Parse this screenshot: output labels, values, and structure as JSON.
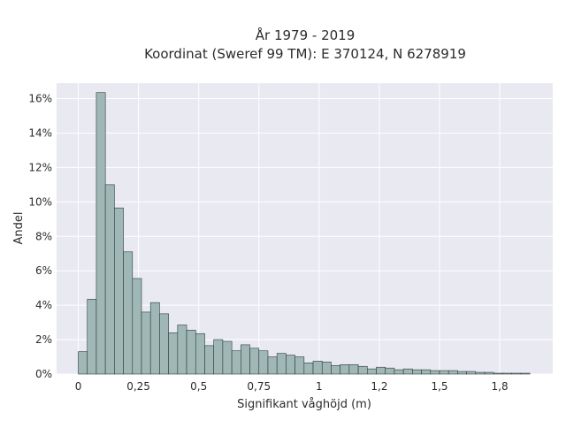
{
  "chart_data": {
    "type": "bar",
    "title_lines": [
      "År 1979 - 2019",
      "Koordinat (Sweref 99 TM): E 370124, N 6278919"
    ],
    "xlabel": "Signifikant våghöjd (m)",
    "ylabel": "Andel",
    "bin_width": 0.0375,
    "bin_start": 0.0,
    "values": [
      1.3,
      4.35,
      16.35,
      11.0,
      9.65,
      7.1,
      5.55,
      3.6,
      4.15,
      3.5,
      2.4,
      2.85,
      2.55,
      2.35,
      1.65,
      2.0,
      1.9,
      1.35,
      1.7,
      1.5,
      1.35,
      1.0,
      1.2,
      1.1,
      1.0,
      0.65,
      0.75,
      0.7,
      0.5,
      0.55,
      0.55,
      0.45,
      0.3,
      0.4,
      0.35,
      0.25,
      0.3,
      0.25,
      0.25,
      0.2,
      0.2,
      0.2,
      0.15,
      0.15,
      0.1,
      0.1,
      0.05,
      0.05,
      0.05,
      0.05
    ],
    "xlim": [
      -0.09,
      1.97
    ],
    "ylim": [
      0,
      16.9
    ],
    "x_ticks": [
      0,
      0.25,
      0.5,
      0.75,
      1,
      1.25,
      1.5,
      1.75
    ],
    "x_tick_labels": [
      "0",
      "0,25",
      "0,5",
      "0,75",
      "1",
      "1,2",
      "1,5",
      "1,8"
    ],
    "y_ticks": [
      0,
      2,
      4,
      6,
      8,
      10,
      12,
      14,
      16
    ],
    "y_tick_labels": [
      "0%",
      "2%",
      "4%",
      "6%",
      "8%",
      "10%",
      "12%",
      "14%",
      "16%"
    ],
    "grid": true,
    "colors": {
      "bar_fill": "#9fb8b6",
      "bar_edge": "#2f3b3a",
      "plot_bg": "#e9e9f1",
      "grid": "#ffffff"
    }
  }
}
